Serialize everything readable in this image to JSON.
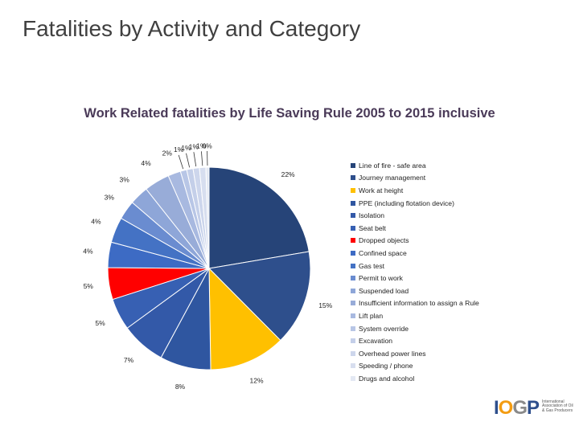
{
  "slide": {
    "title": "Fatalities by Activity and Category"
  },
  "logo": {
    "mark": "IOGP",
    "text": "International Association of Oil & Gas Producers"
  },
  "chart_data": {
    "type": "pie",
    "title": "Work Related fatalities by Life Saving Rule 2005 to 2015 inclusive",
    "legend_position": "right",
    "slices": [
      {
        "label": "Line of fire - safe area",
        "value": 22,
        "value_label": "22%",
        "color": "#264478"
      },
      {
        "label": "Journey management",
        "value": 15,
        "value_label": "15%",
        "color": "#2e4f8c"
      },
      {
        "label": "Work at height",
        "value": 12,
        "value_label": "12%",
        "color": "#ffc000"
      },
      {
        "label": "PPE (including flotation device)",
        "value": 8,
        "value_label": "8%",
        "color": "#2f56a0"
      },
      {
        "label": "Isolation",
        "value": 7,
        "value_label": "7%",
        "color": "#3359a8"
      },
      {
        "label": "Seat belt",
        "value": 5,
        "value_label": "5%",
        "color": "#3760b3"
      },
      {
        "label": "Dropped objects",
        "value": 5,
        "value_label": "5%",
        "color": "#ff0000"
      },
      {
        "label": "Confined space",
        "value": 4,
        "value_label": "4%",
        "color": "#3d6bc4"
      },
      {
        "label": "Gas test",
        "value": 4,
        "value_label": "4%",
        "color": "#4472c4"
      },
      {
        "label": "Permit to work",
        "value": 3,
        "value_label": "3%",
        "color": "#6a8cd0"
      },
      {
        "label": "Suspended load",
        "value": 3,
        "value_label": "3%",
        "color": "#8ea6d8"
      },
      {
        "label": "Insufficient information to assign a Rule",
        "value": 4,
        "value_label": "4%",
        "color": "#98acd8"
      },
      {
        "label": "Lift plan",
        "value": 2,
        "value_label": "2%",
        "color": "#a8b9e0"
      },
      {
        "label": "System override",
        "value": 1,
        "value_label": "1%",
        "color": "#b8c6e6"
      },
      {
        "label": "Excavation",
        "value": 1,
        "value_label": "1%",
        "color": "#c4cfe9"
      },
      {
        "label": "Overhead power lines",
        "value": 1,
        "value_label": "1%",
        "color": "#cdd6ec"
      },
      {
        "label": "Speeding / phone",
        "value": 1,
        "value_label": "1%",
        "color": "#d7deef"
      },
      {
        "label": "Drugs and alcohol",
        "value": 0.5,
        "value_label": "0%",
        "color": "#e3e8f3"
      }
    ]
  }
}
